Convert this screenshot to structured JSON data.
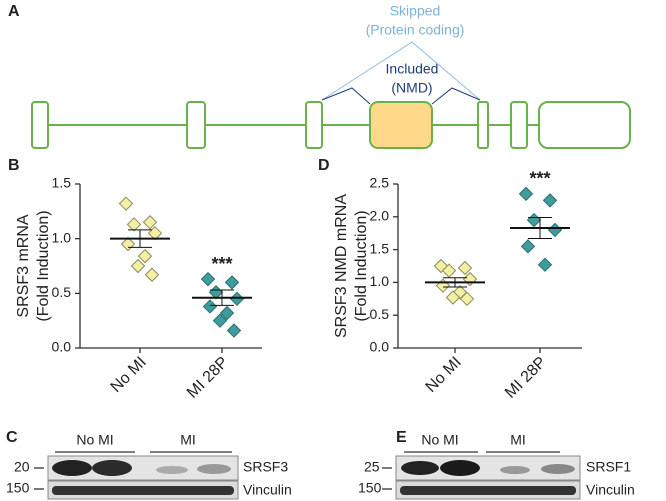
{
  "panel_a": {
    "letter": "A",
    "skipped": "Skipped",
    "skipped_note": "(Protein coding)",
    "included": "Included",
    "included_note": "(NMD)"
  },
  "chart_data": [
    {
      "type": "dot",
      "letter": "B",
      "ylabel": [
        "SRSF3 mRNA",
        "(Fold Induction)"
      ],
      "categories": [
        "No MI",
        "MI 28P"
      ],
      "ylim": [
        0,
        1.5
      ],
      "yticks": [
        {
          "value": 0,
          "label": "0.0"
        },
        {
          "value": 0.5,
          "label": "0.5"
        },
        {
          "value": 1,
          "label": "1.0"
        },
        {
          "value": 1.5,
          "label": "1.5"
        }
      ],
      "annotation": "***",
      "groups": [
        {
          "name": "No MI",
          "color": "#f3f0a6",
          "values": [
            1.32,
            1.15,
            1.13,
            1.05,
            0.95,
            0.84,
            0.75,
            0.67
          ],
          "mean": 1.0,
          "sem": 0.08
        },
        {
          "name": "MI 28P",
          "color": "#3f9c9c",
          "values": [
            0.63,
            0.6,
            0.51,
            0.45,
            0.38,
            0.32,
            0.25,
            0.16
          ],
          "mean": 0.46,
          "sem": 0.07
        }
      ]
    },
    {
      "type": "dot",
      "letter": "D",
      "ylabel": [
        "SRSF3 NMD mRNA",
        "(Fold Induction)"
      ],
      "categories": [
        "No MI",
        "MI 28P"
      ],
      "ylim": [
        0,
        2.5
      ],
      "yticks": [
        {
          "value": 0,
          "label": "0.0"
        },
        {
          "value": 0.5,
          "label": "0.5"
        },
        {
          "value": 1,
          "label": "1.0"
        },
        {
          "value": 1.5,
          "label": "1.5"
        },
        {
          "value": 2,
          "label": "2.0"
        },
        {
          "value": 2.5,
          "label": "2.5"
        }
      ],
      "annotation": "***",
      "groups": [
        {
          "name": "No MI",
          "color": "#f3f0a6",
          "values": [
            1.25,
            1.22,
            1.18,
            1.05,
            0.95,
            0.85,
            0.77,
            0.75
          ],
          "mean": 1.0,
          "sem": 0.07
        },
        {
          "name": "MI 28P",
          "color": "#3f9c9c",
          "values": [
            2.35,
            2.25,
            1.95,
            1.8,
            1.55,
            1.27
          ],
          "mean": 1.83,
          "sem": 0.16
        }
      ]
    }
  ],
  "panel_c": {
    "letter": "C",
    "group1": "No MI",
    "group2": "MI",
    "marker_top": "20",
    "marker_bottom": "150",
    "protein": "SRSF3",
    "control": "Vinculin"
  },
  "panel_e": {
    "letter": "E",
    "group1": "No MI",
    "group2": "MI",
    "marker_top": "25",
    "marker_bottom": "150",
    "protein": "SRSF1",
    "control": "Vinculin"
  }
}
